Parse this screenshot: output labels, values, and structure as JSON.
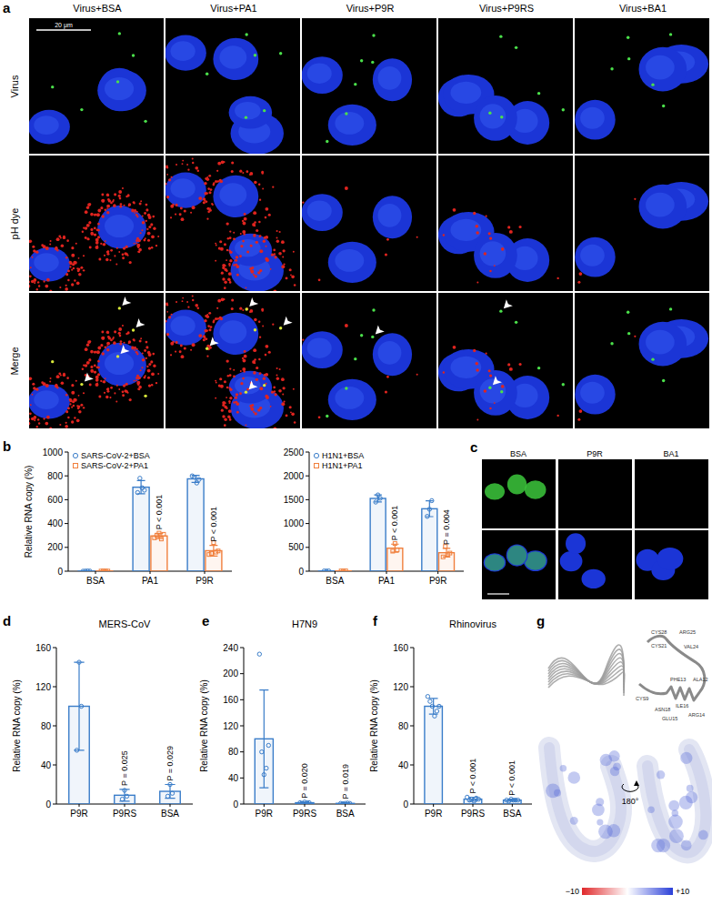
{
  "panel_labels": [
    "a",
    "b",
    "c",
    "d",
    "e",
    "f",
    "g"
  ],
  "panel_a": {
    "columns": [
      "Virus+BSA",
      "Virus+PA1",
      "Virus+P9R",
      "Virus+P9RS",
      "Virus+BA1"
    ],
    "rows": [
      "Virus",
      "pH dye",
      "Merge"
    ],
    "scale_bar": "20 μm"
  },
  "panel_c": {
    "columns": [
      "BSA",
      "P9R",
      "BA1"
    ]
  },
  "panel_g": {
    "residues": [
      "CYS28",
      "ARG25",
      "CYS21",
      "VAL24",
      "PHE13",
      "ALA12",
      "ILE16",
      "CYS9",
      "ASN18",
      "GLU15",
      "ARG14"
    ],
    "rotation": "180°",
    "colorbar": {
      "range": [
        -10,
        10
      ],
      "ticks": [
        {
          "value": -10,
          "label": "−10"
        },
        {
          "value": 10,
          "label": "+10"
        }
      ]
    }
  },
  "chart_data": [
    {
      "type": "bar",
      "y_label": "Relative RNA copy (%)",
      "categories": [
        "BSA",
        "PA1",
        "P9R"
      ],
      "series": [
        {
          "name": "SARS-CoV-2+BSA",
          "color": "#3a7dc9",
          "marker": "circle",
          "values": [
            1,
            705,
            775
          ],
          "errors": [
            1,
            55,
            30
          ],
          "points": [
            [
              0,
              1,
              2,
              1
            ],
            [
              660,
              780,
              700,
              680
            ],
            [
              800,
              790,
              740,
              770
            ]
          ]
        },
        {
          "name": "SARS-CoV-2+PA1",
          "color": "#f07f3c",
          "marker": "square",
          "values": [
            1,
            296,
            172
          ],
          "errors": [
            1,
            22,
            45
          ],
          "points": [
            [
              1,
              2,
              1,
              1
            ],
            [
              280,
              300,
              320,
              270,
              310
            ],
            [
              140,
              150,
              240,
              160,
              170
            ]
          ]
        }
      ],
      "ylim": [
        0,
        1000
      ],
      "yticks": [
        0,
        200,
        400,
        600,
        800,
        1000
      ],
      "legend": "upper left",
      "annotations": [
        {
          "category": 1,
          "series": 1,
          "text": "P < 0.001"
        },
        {
          "category": 2,
          "series": 1,
          "text": "P < 0.001"
        }
      ]
    },
    {
      "type": "bar",
      "categories": [
        "BSA",
        "PA1",
        "P9R"
      ],
      "series": [
        {
          "name": "H1N1+BSA",
          "color": "#3a7dc9",
          "marker": "circle",
          "values": [
            5,
            1527,
            1310
          ],
          "errors": [
            3,
            75,
            165
          ],
          "points": [
            [
              5,
              3,
              6
            ],
            [
              1450,
              1600,
              1530
            ],
            [
              1150,
              1300,
              1480
            ]
          ]
        },
        {
          "name": "H1N1+PA1",
          "color": "#f07f3c",
          "marker": "square",
          "values": [
            5,
            483,
            388
          ],
          "errors": [
            1,
            85,
            90
          ],
          "points": [
            [
              5,
              4,
              6
            ],
            [
              420,
              580,
              450
            ],
            [
              300,
              520,
              350,
              380
            ]
          ]
        }
      ],
      "ylim": [
        0,
        2500
      ],
      "yticks": [
        0,
        500,
        1000,
        1500,
        2000,
        2500
      ],
      "legend": "upper left",
      "annotations": [
        {
          "category": 1,
          "series": 1,
          "text": "P < 0.001"
        },
        {
          "category": 2,
          "series": 1,
          "text": "P = 0.004"
        }
      ]
    },
    {
      "type": "bar",
      "title": "MERS-CoV",
      "y_label": "Relative RNA copy (%)",
      "categories": [
        "P9R",
        "P9RS",
        "BSA"
      ],
      "series": [
        {
          "color": "#3a7dc9",
          "marker": "circle",
          "values": [
            100,
            9,
            13
          ],
          "errors": [
            45,
            6,
            7
          ],
          "points": [
            [
              55,
              145,
              100
            ],
            [
              5,
              14,
              8
            ],
            [
              8,
              20,
              11
            ]
          ]
        }
      ],
      "ylim": [
        0,
        160
      ],
      "yticks": [
        0,
        40,
        80,
        120,
        160
      ],
      "annotations": [
        {
          "category": 1,
          "series": 0,
          "text": "P = 0.025"
        },
        {
          "category": 2,
          "series": 0,
          "text": "P = 0.029"
        }
      ]
    },
    {
      "type": "bar",
      "title": "H7N9",
      "y_label": "Relative RNA copy (%)",
      "categories": [
        "P9R",
        "P9RS",
        "BSA"
      ],
      "series": [
        {
          "color": "#3a7dc9",
          "marker": "circle",
          "values": [
            100,
            2,
            1
          ],
          "errors": [
            75,
            1,
            1
          ],
          "points": [
            [
              230,
              80,
              45,
              55,
              90
            ],
            [
              2,
              1,
              3,
              2,
              2
            ],
            [
              1,
              0.5,
              1,
              1.5,
              1
            ]
          ]
        }
      ],
      "ylim": [
        0,
        240
      ],
      "yticks": [
        0,
        40,
        80,
        120,
        160,
        200,
        240
      ],
      "annotations": [
        {
          "category": 1,
          "series": 0,
          "text": "P = 0.020"
        },
        {
          "category": 2,
          "series": 0,
          "text": "P = 0.019"
        }
      ]
    },
    {
      "type": "bar",
      "title": "Rhinovirus",
      "y_label": "Relative RNA copy (%)",
      "categories": [
        "P9R",
        "P9RS",
        "BSA"
      ],
      "series": [
        {
          "color": "#3a7dc9",
          "marker": "circle",
          "values": [
            100,
            5,
            4
          ],
          "errors": [
            8,
            2,
            1
          ],
          "points": [
            [
              110,
              105,
              100,
              90,
              95,
              100
            ],
            [
              7,
              4,
              5,
              3,
              6,
              5
            ],
            [
              4,
              3,
              5,
              4,
              4,
              4
            ]
          ]
        }
      ],
      "ylim": [
        0,
        160
      ],
      "yticks": [
        0,
        40,
        80,
        120,
        160
      ],
      "annotations": [
        {
          "category": 1,
          "series": 0,
          "text": "P < 0.001"
        },
        {
          "category": 2,
          "series": 0,
          "text": "P < 0.001"
        }
      ]
    }
  ]
}
